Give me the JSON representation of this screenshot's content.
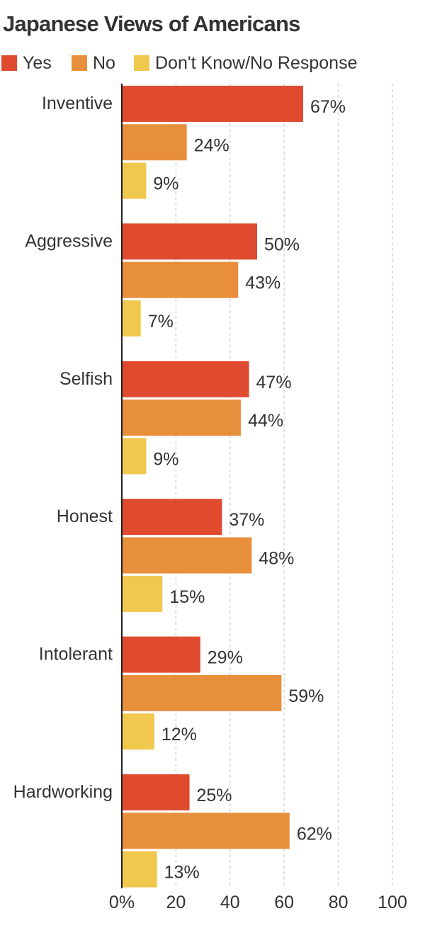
{
  "chart_data": {
    "type": "bar",
    "orientation": "horizontal",
    "title": "Japanese Views of Americans",
    "categories": [
      "Inventive",
      "Aggressive",
      "Selfish",
      "Honest",
      "Intolerant",
      "Hardworking"
    ],
    "series": [
      {
        "name": "Yes",
        "color": "#e04a2f",
        "values": [
          67,
          50,
          47,
          37,
          29,
          25
        ]
      },
      {
        "name": "No",
        "color": "#e88f3c",
        "values": [
          24,
          43,
          44,
          48,
          59,
          62
        ]
      },
      {
        "name": "Don't Know/No Response",
        "color": "#f0c84e",
        "values": [
          9,
          7,
          9,
          15,
          12,
          13
        ]
      }
    ],
    "value_suffix": "%",
    "xlim": [
      0,
      100
    ],
    "x_ticks": [
      0,
      20,
      40,
      60,
      80,
      100
    ],
    "x_tick_labels": [
      "0%",
      "20",
      "40",
      "60",
      "80",
      "100"
    ],
    "grid": true,
    "legend_position": "top-left"
  }
}
